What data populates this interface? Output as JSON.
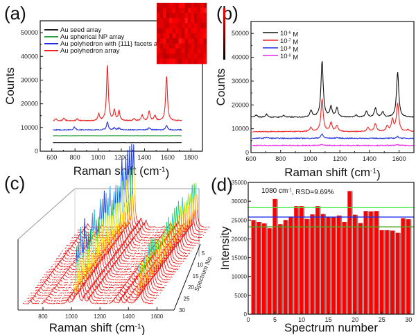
{
  "panel_labels": [
    "(a)",
    "(b)",
    "(c)",
    "(d)"
  ],
  "inset": {
    "description": "SERS mapping image",
    "rows": 12,
    "cols": 16,
    "colorbar": {
      "top_color": "#ff0000",
      "bottom_color": "#000000"
    }
  },
  "chart_data": [
    {
      "id": "a",
      "type": "line",
      "title": "",
      "xlabel": "Raman shift (cm-1)",
      "xlabel_base": "Raman shift (cm",
      "xlabel_sup": "-1",
      "xlabel_end": ")",
      "ylabel": "Counts",
      "xlim": [
        500,
        1900
      ],
      "ylim": [
        0,
        55000
      ],
      "xticks": [
        600,
        800,
        1000,
        1200,
        1400,
        1600,
        1800
      ],
      "yticks": [
        0,
        10000,
        20000,
        30000,
        40000,
        50000
      ],
      "legend_position": "top-left",
      "series": [
        {
          "name": "Au seed array",
          "color": "#222222",
          "baseline": 3600,
          "peaks": []
        },
        {
          "name": "Au spherical NP array",
          "color": "#2e9e3e",
          "baseline": 6500,
          "peaks": []
        },
        {
          "name": "Au polyhedron with {111} facets array",
          "color": "#1f2fe0",
          "baseline": 9000,
          "peaks": [
            [
              795,
              1200
            ],
            [
              1080,
              3300
            ],
            [
              1140,
              900
            ],
            [
              1180,
              800
            ],
            [
              1440,
              1000
            ],
            [
              1590,
              1800
            ]
          ]
        },
        {
          "name": "Au polyhedron array",
          "color": "#ee2222",
          "baseline": 12800,
          "peaks": [
            [
              635,
              800
            ],
            [
              705,
              1200
            ],
            [
              820,
              800
            ],
            [
              1005,
              2700
            ],
            [
              1080,
              23500
            ],
            [
              1140,
              4500
            ],
            [
              1180,
              4000
            ],
            [
              1310,
              900
            ],
            [
              1380,
              2400
            ],
            [
              1440,
              4000
            ],
            [
              1490,
              2300
            ],
            [
              1590,
              19000
            ]
          ]
        }
      ],
      "x_range": [
        610,
        1720
      ]
    },
    {
      "id": "b",
      "type": "line",
      "title": "",
      "xlabel": "Raman shift (cm-1)",
      "xlabel_base": "Raman shift (cm",
      "xlabel_sup": "-1",
      "xlabel_end": ")",
      "ylabel": "Counts",
      "xlim": [
        600,
        1700
      ],
      "ylim": [
        0,
        55000
      ],
      "xticks": [
        600,
        800,
        1000,
        1200,
        1400,
        1600
      ],
      "yticks": [
        0,
        10000,
        20000,
        30000,
        40000,
        50000
      ],
      "legend_position": "top-left",
      "series": [
        {
          "name": "10-6 M",
          "label_base": "10",
          "label_sup": "-6",
          "label_end": " M",
          "color": "#111111",
          "baseline": 14800,
          "peaks": [
            [
              635,
              900
            ],
            [
              705,
              1200
            ],
            [
              820,
              800
            ],
            [
              1005,
              2800
            ],
            [
              1080,
              23500
            ],
            [
              1140,
              4200
            ],
            [
              1180,
              3800
            ],
            [
              1310,
              900
            ],
            [
              1380,
              2500
            ],
            [
              1440,
              3800
            ],
            [
              1490,
              2200
            ],
            [
              1590,
              19000
            ]
          ]
        },
        {
          "name": "10-7 M",
          "label_base": "10",
          "label_sup": "-7",
          "label_end": " M",
          "color": "#ee2222",
          "baseline": 8800,
          "peaks": [
            [
              1005,
              1600
            ],
            [
              1080,
              13500
            ],
            [
              1140,
              3600
            ],
            [
              1180,
              2400
            ],
            [
              1390,
              1600
            ],
            [
              1440,
              3400
            ],
            [
              1520,
              2300
            ],
            [
              1555,
              4800
            ],
            [
              1590,
              11700
            ],
            [
              1660,
              700
            ]
          ]
        },
        {
          "name": "10-8 M",
          "label_base": "10",
          "label_sup": "-8",
          "label_end": " M",
          "color": "#1f2fe0",
          "baseline": 6000,
          "peaks": [
            [
              705,
              400
            ],
            [
              1080,
              1800
            ],
            [
              1180,
              300
            ],
            [
              1590,
              700
            ]
          ]
        },
        {
          "name": "10-9 M",
          "label_base": "10",
          "label_sup": "-9",
          "label_end": " M",
          "color": "#ee22ee",
          "baseline": 3000,
          "peaks": [
            [
              1080,
              400
            ],
            [
              1590,
              300
            ]
          ]
        }
      ],
      "x_range": [
        610,
        1700
      ]
    },
    {
      "id": "c",
      "type": "line",
      "title": "",
      "xlabel": "Raman shift (cm-1)",
      "xlabel_base": "Raman shift (cm",
      "xlabel_sup": "-1",
      "xlabel_end": ")",
      "zlabel": "Spectrum No.",
      "xticks": [
        800,
        1000,
        1200,
        1400,
        1600
      ],
      "zticks": [
        5,
        10,
        15,
        20,
        25,
        30
      ],
      "num_spectra": 30,
      "peaks_cm": [
        1080,
        1590
      ],
      "colormap": [
        "#ee1111",
        "#ff8800",
        "#ffee00",
        "#22dd22",
        "#22ccee",
        "#1133dd"
      ]
    },
    {
      "id": "d",
      "type": "bar",
      "title": "",
      "annotation": "1080 cm-1, RSD=9.69%",
      "annotation_base": "1080 cm",
      "annotation_sup": "-1",
      "annotation_end": ", RSD=9.69%",
      "xlabel": "Spectrum number",
      "ylabel": "Intensity",
      "xlim": [
        0,
        31
      ],
      "ylim": [
        0,
        35000
      ],
      "xticks": [
        0,
        5,
        10,
        15,
        20,
        25,
        30
      ],
      "yticks": [
        0,
        5000,
        10000,
        15000,
        20000,
        25000,
        30000,
        35000
      ],
      "categories": [
        1,
        2,
        3,
        4,
        5,
        6,
        7,
        8,
        9,
        10,
        11,
        12,
        13,
        14,
        15,
        16,
        17,
        18,
        19,
        20,
        21,
        22,
        23,
        24,
        25,
        26,
        27,
        28,
        29,
        30
      ],
      "values": [
        25000,
        24500,
        24100,
        22800,
        30600,
        23900,
        25000,
        25900,
        28700,
        28700,
        25300,
        26500,
        28700,
        26600,
        25800,
        25800,
        26200,
        24500,
        32700,
        26400,
        24200,
        27400,
        27300,
        27400,
        22300,
        22300,
        22200,
        21600,
        25500,
        25200
      ],
      "bar_color": "#ff0000",
      "reference_lines": [
        {
          "name": "mean",
          "value": 25800,
          "color": "#2233ee"
        },
        {
          "name": "upper",
          "value": 28300,
          "color": "#44ee44"
        },
        {
          "name": "lower",
          "value": 23200,
          "color": "#55aa22"
        }
      ]
    }
  ]
}
